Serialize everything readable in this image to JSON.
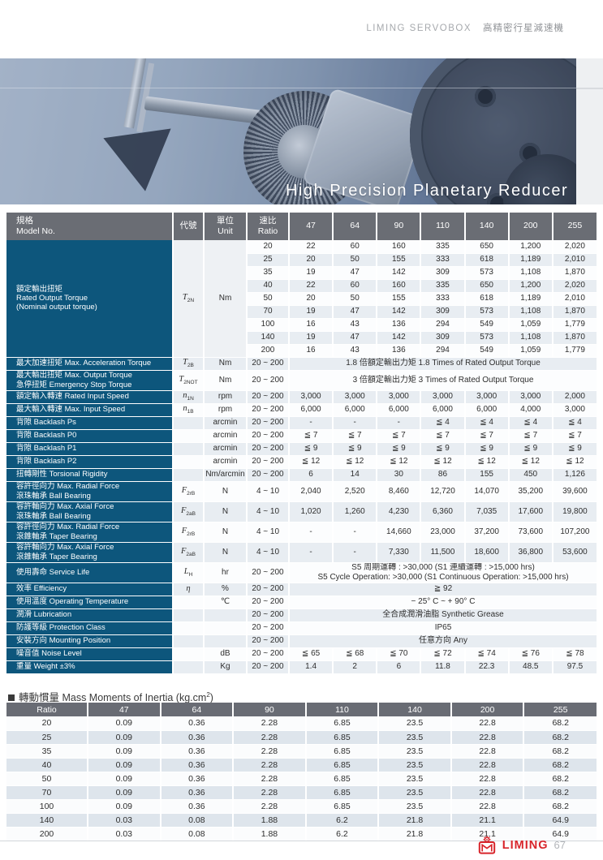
{
  "page": {
    "brand": "LIMING SERVOBOX",
    "brand_zh": "高精密行星減速機",
    "hero_title": "High Precision Planetary Reducer",
    "footer_brand": "LIMING",
    "page_number": "67",
    "accent_red": "#d8252b",
    "label_blue": "#0d567c",
    "header_gray": "#6a6d74"
  },
  "spec": {
    "header": {
      "model": [
        "規格",
        "Model No."
      ],
      "symbol": "代號",
      "unit": [
        "單位",
        "Unit"
      ],
      "ratio": [
        "速比",
        "Ratio"
      ],
      "sizes": [
        "47",
        "64",
        "90",
        "110",
        "140",
        "200",
        "255"
      ]
    },
    "rated_output": {
      "label": [
        "額定輸出扭矩",
        "Rated Output Torque",
        "(Nominal output torque)"
      ],
      "sym": [
        "T",
        "2N"
      ],
      "unit": "Nm",
      "rows": [
        [
          "20",
          "22",
          "60",
          "160",
          "335",
          "650",
          "1,200",
          "2,020"
        ],
        [
          "25",
          "20",
          "50",
          "155",
          "333",
          "618",
          "1,189",
          "2,010"
        ],
        [
          "35",
          "19",
          "47",
          "142",
          "309",
          "573",
          "1,108",
          "1,870"
        ],
        [
          "40",
          "22",
          "60",
          "160",
          "335",
          "650",
          "1,200",
          "2,020"
        ],
        [
          "50",
          "20",
          "50",
          "155",
          "333",
          "618",
          "1,189",
          "2,010"
        ],
        [
          "70",
          "19",
          "47",
          "142",
          "309",
          "573",
          "1,108",
          "1,870"
        ],
        [
          "100",
          "16",
          "43",
          "136",
          "294",
          "549",
          "1,059",
          "1,779"
        ],
        [
          "140",
          "19",
          "47",
          "142",
          "309",
          "573",
          "1,108",
          "1,870"
        ],
        [
          "200",
          "16",
          "43",
          "136",
          "294",
          "549",
          "1,059",
          "1,779"
        ]
      ]
    },
    "rows": [
      {
        "label": [
          "最大加速扭矩 Max. Acceleration Torque"
        ],
        "sym": [
          "T",
          "2B"
        ],
        "unit": "Nm",
        "ratio": "20 ~ 200",
        "span": [
          "1.8 倍額定輸出力矩  1.8 Times of Rated Output Torque"
        ]
      },
      {
        "label": [
          "最大輸出扭矩 Max. Output Torque",
          "急停扭矩 Emergency Stop Torque"
        ],
        "sym": [
          "T",
          "2NOT"
        ],
        "unit": "Nm",
        "ratio": "20 ~ 200",
        "span": [
          "3 倍額定輸出力矩  3 Times of Rated Output Torque"
        ]
      },
      {
        "label": [
          "額定輸入轉速 Rated Input Speed"
        ],
        "sym": [
          "n",
          "1N"
        ],
        "unit": "rpm",
        "ratio": "20 ~ 200",
        "values": [
          "3,000",
          "3,000",
          "3,000",
          "3,000",
          "3,000",
          "3,000",
          "2,000"
        ]
      },
      {
        "label": [
          "最大輸入轉速 Max. Input Speed"
        ],
        "sym": [
          "n",
          "1B"
        ],
        "unit": "rpm",
        "ratio": "20 ~ 200",
        "values": [
          "6,000",
          "6,000",
          "6,000",
          "6,000",
          "6,000",
          "4,000",
          "3,000"
        ]
      },
      {
        "label": [
          "背隙 Backlash Ps"
        ],
        "sym": null,
        "unit": "arcmin",
        "ratio": "20 ~ 200",
        "values": [
          "-",
          "-",
          "-",
          "≦ 4",
          "≦ 4",
          "≦ 4",
          "≦ 4"
        ]
      },
      {
        "label": [
          "背隙 Backlash P0"
        ],
        "sym": null,
        "unit": "arcmin",
        "ratio": "20 ~ 200",
        "values": [
          "≦ 7",
          "≦ 7",
          "≦ 7",
          "≦ 7",
          "≦ 7",
          "≦ 7",
          "≦ 7"
        ]
      },
      {
        "label": [
          "背隙 Backlash P1"
        ],
        "sym": null,
        "unit": "arcmin",
        "ratio": "20 ~ 200",
        "values": [
          "≦ 9",
          "≦ 9",
          "≦ 9",
          "≦ 9",
          "≦ 9",
          "≦ 9",
          "≦ 9"
        ]
      },
      {
        "label": [
          "背隙 Backlash P2"
        ],
        "sym": null,
        "unit": "arcmin",
        "ratio": "20 ~ 200",
        "values": [
          "≦ 12",
          "≦ 12",
          "≦ 12",
          "≦ 12",
          "≦ 12",
          "≦ 12",
          "≦ 12"
        ]
      },
      {
        "label": [
          "扭轉剛性 Torsional Rigidity"
        ],
        "sym": null,
        "unit": "Nm/arcmin",
        "ratio": "20 ~ 200",
        "values": [
          "6",
          "14",
          "30",
          "86",
          "155",
          "450",
          "1,126"
        ]
      },
      {
        "label": [
          "容許徑向力 Max. Radial Force",
          "滾珠軸承 Ball Bearing"
        ],
        "sym": [
          "F",
          "2rB"
        ],
        "unit": "N",
        "ratio": "4 ~ 10",
        "values": [
          "2,040",
          "2,520",
          "8,460",
          "12,720",
          "14,070",
          "35,200",
          "39,600"
        ]
      },
      {
        "label": [
          "容許軸向力 Max. Axial Force",
          "滾珠軸承 Ball Bearing"
        ],
        "sym": [
          "F",
          "2aB"
        ],
        "unit": "N",
        "ratio": "4 ~ 10",
        "values": [
          "1,020",
          "1,260",
          "4,230",
          "6,360",
          "7,035",
          "17,600",
          "19,800"
        ]
      },
      {
        "label": [
          "容許徑向力 Max. Radial Force",
          "滾錐軸承 Taper Bearing"
        ],
        "sym": [
          "F",
          "2rB"
        ],
        "unit": "N",
        "ratio": "4 ~ 10",
        "values": [
          "-",
          "-",
          "14,660",
          "23,000",
          "37,200",
          "73,600",
          "107,200"
        ]
      },
      {
        "label": [
          "容許軸向力 Max. Axial Force",
          "滾錐軸承 Taper Bearing"
        ],
        "sym": [
          "F",
          "2aB"
        ],
        "unit": "N",
        "ratio": "4 ~ 10",
        "values": [
          "-",
          "-",
          "7,330",
          "11,500",
          "18,600",
          "36,800",
          "53,600"
        ]
      },
      {
        "label": [
          "使用壽命 Service Life"
        ],
        "sym": [
          "L",
          "H"
        ],
        "unit": "hr",
        "ratio": "20 ~ 200",
        "span": [
          "S5 周期運轉 : >30,000 (S1 連續運轉 : >15,000 hrs)",
          "S5 Cycle Operation: >30,000 (S1 Continuous Operation: >15,000 hrs)"
        ]
      },
      {
        "label": [
          "效率 Efficiency"
        ],
        "sym": [
          "η",
          ""
        ],
        "unit": "%",
        "ratio": "20 ~ 200",
        "span": [
          "≧ 92"
        ]
      },
      {
        "label": [
          "使用溫度 Operating Temperature"
        ],
        "sym": null,
        "unit": "℃",
        "ratio": "20 ~ 200",
        "span": [
          "− 25° C ~ + 90° C"
        ]
      },
      {
        "label": [
          "潤滑 Lubrication"
        ],
        "sym": null,
        "unit": "",
        "ratio": "20 ~ 200",
        "span": [
          "全合成潤滑油脂  Synthetic Grease"
        ]
      },
      {
        "label": [
          "防護等級 Protection Class"
        ],
        "sym": null,
        "unit": "",
        "ratio": "20 ~ 200",
        "span": [
          "IP65"
        ]
      },
      {
        "label": [
          "安裝方向 Mounting Position"
        ],
        "sym": null,
        "unit": "",
        "ratio": "20 ~ 200",
        "span": [
          "任意方向  Any"
        ]
      },
      {
        "label": [
          "噪音值 Noise Level"
        ],
        "sym": null,
        "unit": "dB",
        "ratio": "20 ~ 200",
        "values": [
          "≦ 65",
          "≦ 68",
          "≦ 70",
          "≦ 72",
          "≦ 74",
          "≦ 76",
          "≦ 78"
        ]
      },
      {
        "label": [
          "重量 Weight ±3%"
        ],
        "sym": null,
        "unit": "Kg",
        "ratio": "20 ~ 200",
        "values": [
          "1.4",
          "2",
          "6",
          "11.8",
          "22.3",
          "48.5",
          "97.5"
        ]
      }
    ]
  },
  "inertia": {
    "title_prefix": "轉動慣量 Mass Moments of Inertia (kg.cm",
    "title_sup": "2",
    "title_suffix": ")",
    "headers": [
      "Ratio",
      "47",
      "64",
      "90",
      "110",
      "140",
      "200",
      "255"
    ],
    "rows": [
      [
        "20",
        "0.09",
        "0.36",
        "2.28",
        "6.85",
        "23.5",
        "22.8",
        "68.2"
      ],
      [
        "25",
        "0.09",
        "0.36",
        "2.28",
        "6.85",
        "23.5",
        "22.8",
        "68.2"
      ],
      [
        "35",
        "0.09",
        "0.36",
        "2.28",
        "6.85",
        "23.5",
        "22.8",
        "68.2"
      ],
      [
        "40",
        "0.09",
        "0.36",
        "2.28",
        "6.85",
        "23.5",
        "22.8",
        "68.2"
      ],
      [
        "50",
        "0.09",
        "0.36",
        "2.28",
        "6.85",
        "23.5",
        "22.8",
        "68.2"
      ],
      [
        "70",
        "0.09",
        "0.36",
        "2.28",
        "6.85",
        "23.5",
        "22.8",
        "68.2"
      ],
      [
        "100",
        "0.09",
        "0.36",
        "2.28",
        "6.85",
        "23.5",
        "22.8",
        "68.2"
      ],
      [
        "140",
        "0.03",
        "0.08",
        "1.88",
        "6.2",
        "21.8",
        "21.1",
        "64.9"
      ],
      [
        "200",
        "0.03",
        "0.08",
        "1.88",
        "6.2",
        "21.8",
        "21.1",
        "64.9"
      ]
    ]
  }
}
